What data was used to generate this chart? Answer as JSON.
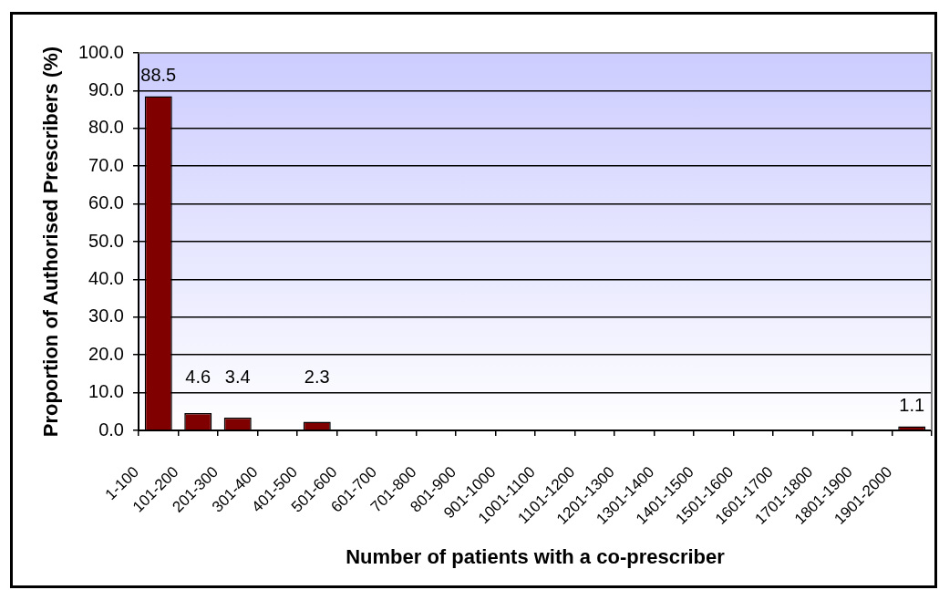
{
  "chart_data": {
    "type": "bar",
    "xlabel": "Number of patients with a co-prescriber",
    "ylabel": "Proportion of Authorised Prescribers (%)",
    "categories": [
      "1-100",
      "101-200",
      "201-300",
      "301-400",
      "401-500",
      "501-600",
      "601-700",
      "701-800",
      "801-900",
      "901-1000",
      "1001-1100",
      "1101-1200",
      "1201-1300",
      "1301-1400",
      "1401-1500",
      "1501-1600",
      "1601-1700",
      "1701-1800",
      "1801-1900",
      "1901-2000"
    ],
    "values": [
      88.5,
      4.6,
      3.4,
      0,
      2.3,
      0,
      0,
      0,
      0,
      0,
      0,
      0,
      0,
      0,
      0,
      0,
      0,
      0,
      0,
      1.1
    ],
    "value_labels": [
      "88.5",
      "4.6",
      "3.4",
      null,
      "2.3",
      null,
      null,
      null,
      null,
      null,
      null,
      null,
      null,
      null,
      null,
      null,
      null,
      null,
      null,
      "1.1"
    ],
    "color": "#800000",
    "ylim": [
      0,
      100
    ],
    "yticks": [
      {
        "value": 0,
        "label": "0.0"
      },
      {
        "value": 10,
        "label": "10.0"
      },
      {
        "value": 20,
        "label": "20.0"
      },
      {
        "value": 30,
        "label": "30.0"
      },
      {
        "value": 40,
        "label": "40.0"
      },
      {
        "value": 50,
        "label": "50.0"
      },
      {
        "value": 60,
        "label": "60.0"
      },
      {
        "value": 70,
        "label": "70.0"
      },
      {
        "value": 80,
        "label": "80.0"
      },
      {
        "value": 90,
        "label": "90.0"
      },
      {
        "value": 100,
        "label": "100.0"
      }
    ],
    "grid": "y"
  }
}
